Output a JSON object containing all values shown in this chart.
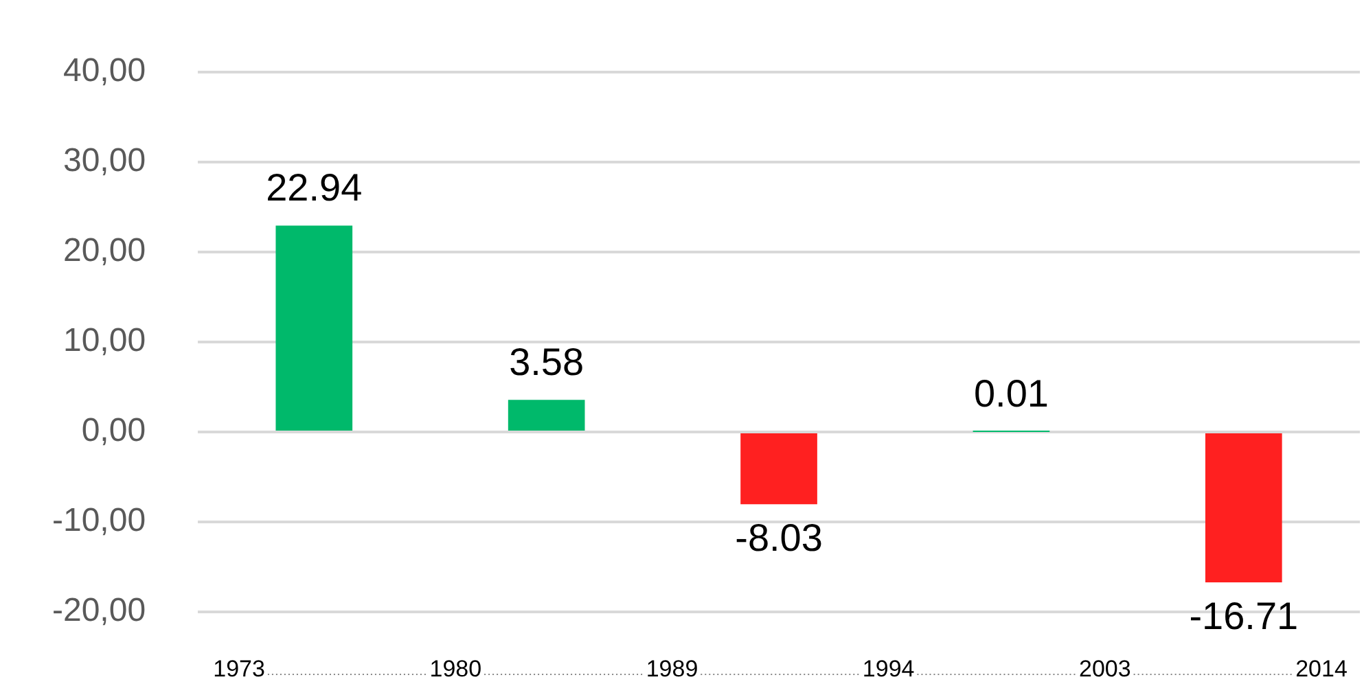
{
  "chart_data": {
    "type": "bar",
    "categories": [
      null,
      null,
      null,
      null,
      null
    ],
    "values": [
      22.94,
      3.58,
      -8.03,
      0.01,
      -16.71
    ],
    "colors": [
      "#00b96b",
      "#00b96b",
      "#ff2020",
      "#00b96b",
      "#ff2020"
    ],
    "ylim": [
      -20,
      40
    ],
    "yticks": [
      {
        "value": -20,
        "label": "-20,00"
      },
      {
        "value": -10,
        "label": "-10,00"
      },
      {
        "value": 0,
        "label": "0,00"
      },
      {
        "value": 10,
        "label": "10,00"
      },
      {
        "value": 20,
        "label": "20,00"
      },
      {
        "value": 30,
        "label": "30,00"
      },
      {
        "value": 40,
        "label": "40,00"
      }
    ],
    "grid": "y",
    "data_labels": true,
    "legend": false,
    "annotations": [
      "1973",
      "1980",
      "1989",
      "1994",
      "2003",
      "2014"
    ]
  }
}
